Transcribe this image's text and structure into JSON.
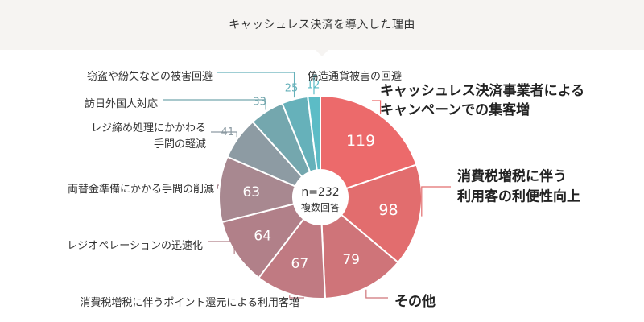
{
  "header": {
    "title": "キャッシュレス決済を導入した理由"
  },
  "center": {
    "n_label": "n=232",
    "sub_label": "複数回答"
  },
  "chart_data": {
    "type": "pie",
    "title": "キャッシュレス決済を導入した理由",
    "donut": true,
    "start": "12 o'clock, clockwise",
    "slices": [
      {
        "label": "キャッシュレス決済事業者による\nキャンペーンでの集客増",
        "value": 119,
        "color": "#ec6a6b",
        "value_color": "#ffffff",
        "style": "big",
        "side": "right"
      },
      {
        "label": "消費税増税に伴う\n利用客の利便性向上",
        "value": 98,
        "color": "#e26d6e",
        "value_color": "#ffffff",
        "style": "big",
        "side": "right"
      },
      {
        "label": "その他",
        "value": 79,
        "color": "#cf7479",
        "value_color": "#ffffff",
        "style": "big",
        "side": "right"
      },
      {
        "label": "消費税増税に伴うポイント還元による利用客増",
        "value": 67,
        "color": "#c07a82",
        "value_color": "#ffffff",
        "style": "small",
        "side": "left"
      },
      {
        "label": "レジオペレーションの迅速化",
        "value": 64,
        "color": "#b18089",
        "value_color": "#ffffff",
        "style": "small",
        "side": "left"
      },
      {
        "label": "両替金準備にかかる手間の削減",
        "value": 63,
        "color": "#a88890",
        "value_color": "#ffffff",
        "style": "small",
        "side": "left"
      },
      {
        "label": "レジ締め処理にかかわる\n手間の軽減",
        "value": 41,
        "color": "#8d9ba3",
        "value_color": "#8d9ba3",
        "style": "small",
        "side": "left"
      },
      {
        "label": "訪日外国人対応",
        "value": 33,
        "color": "#74a7ae",
        "value_color": "#74a7ae",
        "style": "small",
        "side": "left"
      },
      {
        "label": "窃盗や紛失などの被害回避",
        "value": 25,
        "color": "#66b1ba",
        "value_color": "#66b1ba",
        "style": "small",
        "side": "left"
      },
      {
        "label": "偽造通貨被害の回避",
        "value": 12,
        "color": "#5cbcc6",
        "value_color": "#5cbcc6",
        "style": "small",
        "side": "top"
      }
    ]
  }
}
